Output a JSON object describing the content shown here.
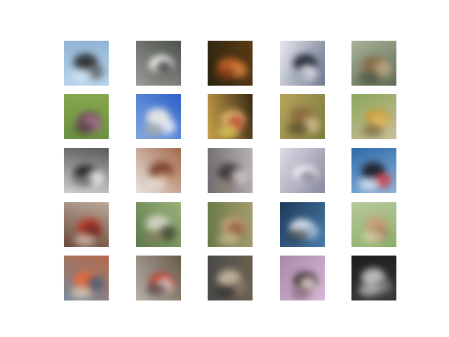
{
  "grid": {
    "rows": 5,
    "cols": 5,
    "tiles": [
      {
        "subject": "airplane-in-sky",
        "bg": "#b9d3ea",
        "bg2": "#8fb4d6",
        "fg": [
          "#2b2b2b",
          "#5a5a5a",
          "#e0eefa"
        ]
      },
      {
        "subject": "boat-on-water",
        "bg": "#9a9d98",
        "bg2": "#4c5149",
        "fg": [
          "#ffffff",
          "#2d2d2d",
          "#7d7a70"
        ]
      },
      {
        "subject": "orange-animal",
        "bg": "#2a2412",
        "bg2": "#5a3a12",
        "fg": [
          "#c8642a",
          "#e08840",
          "#7b3514"
        ]
      },
      {
        "subject": "car-white",
        "bg": "#e6e8ee",
        "bg2": "#6f7890",
        "fg": [
          "#1f2433",
          "#ffffff",
          "#9aa2b4"
        ]
      },
      {
        "subject": "frog-on-grass",
        "bg": "#a7b39a",
        "bg2": "#5f6c52",
        "fg": [
          "#8a6b46",
          "#c7b08a",
          "#3f4a36"
        ]
      },
      {
        "subject": "horse-on-grass",
        "bg": "#87a84e",
        "bg2": "#6a8f40",
        "fg": [
          "#7a4a66",
          "#b58aa0",
          "#4b2d3b"
        ]
      },
      {
        "subject": "bird-blue-sky",
        "bg": "#2f62c8",
        "bg2": "#7fa6e3",
        "fg": [
          "#f0eee4",
          "#ffffff",
          "#c2b79a"
        ]
      },
      {
        "subject": "dog-colorful",
        "bg": "#3a2a14",
        "bg2": "#c7a04a",
        "fg": [
          "#e8c07a",
          "#b7402e",
          "#f4e86a"
        ]
      },
      {
        "subject": "deer-on-grass",
        "bg": "#7f7a3f",
        "bg2": "#b5a55c",
        "fg": [
          "#8c6c3e",
          "#d8c49a",
          "#4a3a22"
        ]
      },
      {
        "subject": "bird-on-ground",
        "bg": "#cbbf9a",
        "bg2": "#8aa55a",
        "fg": [
          "#c79a3a",
          "#e4c06a",
          "#6a5a3a"
        ]
      },
      {
        "subject": "cat-white-black",
        "bg": "#cfcfcf",
        "bg2": "#5b5b5b",
        "fg": [
          "#1c1c1c",
          "#ffffff",
          "#8c8c8c"
        ]
      },
      {
        "subject": "dog-brown",
        "bg": "#e7e3df",
        "bg2": "#a46a4c",
        "fg": [
          "#7a3e28",
          "#c79a7a",
          "#f0eeea"
        ]
      },
      {
        "subject": "cat-grey",
        "bg": "#6f6a6e",
        "bg2": "#b8b2b7",
        "fg": [
          "#3a3438",
          "#d8d2d4",
          "#8a7a6a"
        ]
      },
      {
        "subject": "cat-light",
        "bg": "#dcdce6",
        "bg2": "#8a8aa0",
        "fg": [
          "#ffffff",
          "#6a6a82",
          "#b4b4c6"
        ]
      },
      {
        "subject": "bird-blue",
        "bg": "#2f6aa8",
        "bg2": "#8db4dc",
        "fg": [
          "#1c1c28",
          "#e03a3a",
          "#ffffff"
        ]
      },
      {
        "subject": "ship-red",
        "bg": "#b9a79a",
        "bg2": "#6a4a3a",
        "fg": [
          "#c43a2a",
          "#5a2a20",
          "#e8d8c8"
        ]
      },
      {
        "subject": "airplane-field",
        "bg": "#9ab07a",
        "bg2": "#5a7a4a",
        "fg": [
          "#d8d8c8",
          "#3a3a2a",
          "#8a7a5a"
        ]
      },
      {
        "subject": "deer-tan",
        "bg": "#a49a6a",
        "bg2": "#6a7a4a",
        "fg": [
          "#c8a07a",
          "#8a5a3a",
          "#d8c8a0"
        ]
      },
      {
        "subject": "bird-water",
        "bg": "#4a7aa8",
        "bg2": "#1c3a5a",
        "fg": [
          "#e8eef4",
          "#9ab8d4",
          "#2a2a2a"
        ]
      },
      {
        "subject": "horse-pale",
        "bg": "#8ab06a",
        "bg2": "#b8c89a",
        "fg": [
          "#c8a07a",
          "#a07a5a",
          "#e8d8b8"
        ]
      },
      {
        "subject": "truck-colorful",
        "bg": "#7a8a9a",
        "bg2": "#b46a4a",
        "fg": [
          "#e86a3a",
          "#3a5a7a",
          "#f0e0c8"
        ]
      },
      {
        "subject": "truck-red-white",
        "bg": "#b8b0a8",
        "bg2": "#6a5a4a",
        "fg": [
          "#c03a2a",
          "#f0f0f0",
          "#3a3a3a"
        ]
      },
      {
        "subject": "dog-dark",
        "bg": "#4a4a4a",
        "bg2": "#6a6050",
        "fg": [
          "#c8b8a0",
          "#8a7a6a",
          "#2a2a2a"
        ]
      },
      {
        "subject": "horse-pink",
        "bg": "#a88aa8",
        "bg2": "#d8b8d8",
        "fg": [
          "#3a2a2a",
          "#f0e8e0",
          "#7a5a6a"
        ]
      },
      {
        "subject": "cat-black",
        "bg": "#1c1c1c",
        "bg2": "#3a3a3a",
        "fg": [
          "#c8c8c8",
          "#8a8a8a",
          "#e8e8e8"
        ]
      }
    ]
  }
}
